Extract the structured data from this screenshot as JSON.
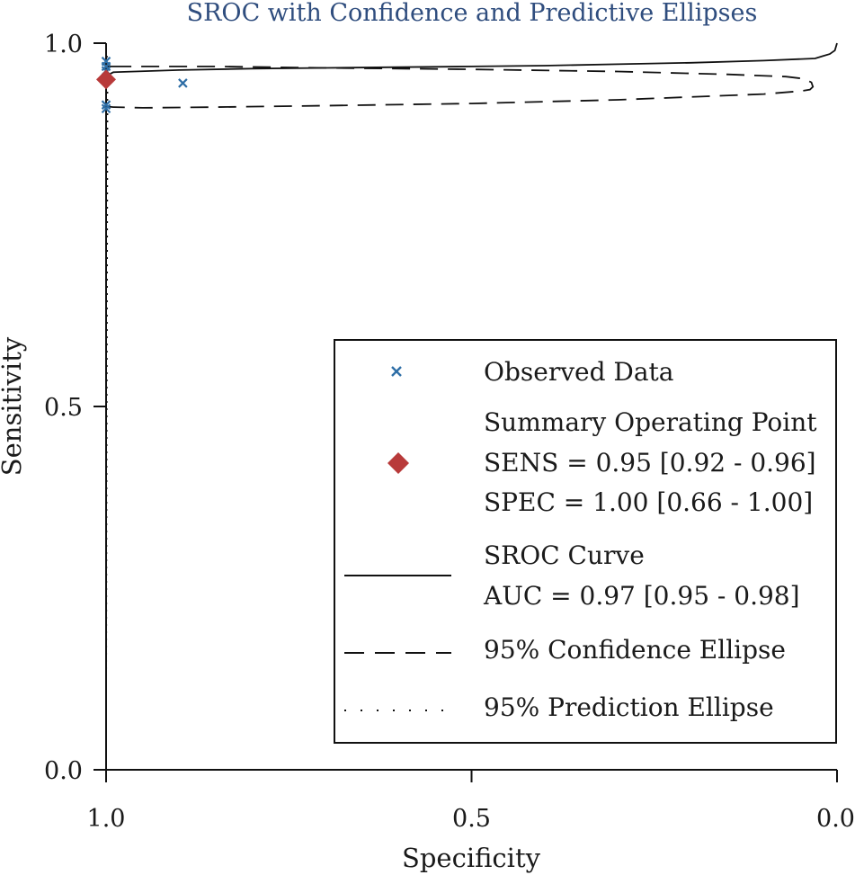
{
  "chart_data": {
    "type": "scatter",
    "title": "SROC with Confidence and Predictive Ellipses",
    "xlabel": "Specificity",
    "ylabel": "Sensitivity",
    "x_reversed": true,
    "xlim": [
      1.0,
      0.0
    ],
    "ylim": [
      0.0,
      1.0
    ],
    "x_ticks": [
      {
        "value": 1.0,
        "label": "1.0"
      },
      {
        "value": 0.5,
        "label": "0.5"
      },
      {
        "value": 0.0,
        "label": "0.0"
      }
    ],
    "y_ticks": [
      {
        "value": 0.0,
        "label": "0.0"
      },
      {
        "value": 0.5,
        "label": "0.5"
      },
      {
        "value": 1.0,
        "label": "1.0"
      }
    ],
    "grid": false,
    "legend_position": "bottom-right",
    "observed_data": {
      "label": "Observed Data",
      "color": "#2e6ea6",
      "points": [
        {
          "spec": 1.0,
          "sens": 0.975
        },
        {
          "spec": 1.0,
          "sens": 0.968
        },
        {
          "spec": 1.0,
          "sens": 0.962
        },
        {
          "spec": 1.0,
          "sens": 0.915
        },
        {
          "spec": 1.0,
          "sens": 0.91
        },
        {
          "spec": 0.895,
          "sens": 0.945
        }
      ]
    },
    "summary_point": {
      "label": "Summary Operating Point",
      "sens_text": "SENS = 0.95 [0.92 - 0.96]",
      "spec_text": "SPEC = 1.00 [0.66 - 1.00]",
      "spec": 1.0,
      "sens": 0.95,
      "color": "#b83a3a"
    },
    "sroc_curve": {
      "label": "SROC Curve",
      "auc_text": "AUC = 0.97 [0.95 - 0.98]",
      "points": [
        [
          1.0,
          0.0
        ],
        [
          1.0,
          0.955
        ],
        [
          0.99,
          0.96
        ],
        [
          0.9,
          0.963
        ],
        [
          0.8,
          0.965
        ],
        [
          0.7,
          0.966
        ],
        [
          0.6,
          0.967
        ],
        [
          0.5,
          0.968
        ],
        [
          0.4,
          0.969
        ],
        [
          0.3,
          0.971
        ],
        [
          0.2,
          0.973
        ],
        [
          0.1,
          0.976
        ],
        [
          0.03,
          0.979
        ],
        [
          0.02,
          0.982
        ],
        [
          0.01,
          0.985
        ],
        [
          0.003,
          0.99
        ],
        [
          0.0,
          1.0
        ]
      ]
    },
    "confidence_ellipse": {
      "label": "95% Confidence Ellipse",
      "points": [
        [
          0.99,
          0.968
        ],
        [
          0.85,
          0.968
        ],
        [
          0.7,
          0.966
        ],
        [
          0.5,
          0.964
        ],
        [
          0.3,
          0.961
        ],
        [
          0.15,
          0.957
        ],
        [
          0.07,
          0.954
        ],
        [
          0.045,
          0.951
        ],
        [
          0.035,
          0.946
        ],
        [
          0.033,
          0.94
        ],
        [
          0.037,
          0.936
        ],
        [
          0.05,
          0.934
        ],
        [
          0.1,
          0.93
        ],
        [
          0.3,
          0.922
        ],
        [
          0.5,
          0.917
        ],
        [
          0.7,
          0.914
        ],
        [
          0.85,
          0.912
        ],
        [
          0.95,
          0.911
        ],
        [
          0.99,
          0.912
        ],
        [
          1.0,
          0.913
        ],
        [
          1.0,
          0.955
        ],
        [
          1.0,
          0.968
        ],
        [
          0.99,
          0.968
        ]
      ]
    },
    "prediction_ellipse": {
      "label": "95% Prediction Ellipse",
      "points": [
        [
          1.0,
          0.0
        ],
        [
          0.999,
          0.5
        ],
        [
          0.998,
          0.9
        ],
        [
          0.998,
          0.97
        ],
        [
          0.999,
          0.985
        ],
        [
          1.0,
          0.99
        ],
        [
          1.0,
          0.5
        ],
        [
          1.0,
          0.0
        ]
      ]
    }
  }
}
